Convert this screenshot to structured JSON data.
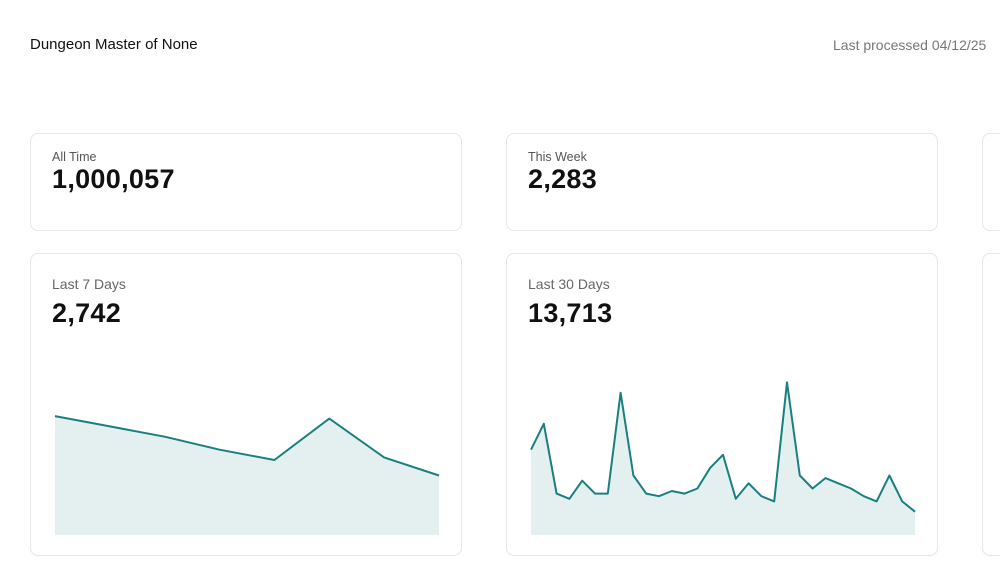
{
  "header": {
    "title": "Dungeon Master of None",
    "last_processed": "Last processed 04/12/25"
  },
  "summary_cards": [
    {
      "label": "All Time",
      "value": "1,000,057"
    },
    {
      "label": "This Week",
      "value": "2,283"
    }
  ],
  "chart_cards": [
    {
      "label": "Last 7 Days",
      "value": "2,742"
    },
    {
      "label": "Last 30 Days",
      "value": "13,713"
    }
  ],
  "colors": {
    "line": "#1a7f80",
    "fill": "#e4f0ef",
    "border": "#e6e6e6"
  },
  "chart_data": [
    {
      "type": "area",
      "title": "Last 7 Days",
      "x": [
        1,
        2,
        3,
        4,
        5,
        6,
        7,
        8
      ],
      "values": [
        460,
        420,
        380,
        330,
        290,
        450,
        300,
        230
      ],
      "ylim": [
        0,
        700
      ]
    },
    {
      "type": "area",
      "title": "Last 30 Days",
      "x": [
        1,
        2,
        3,
        4,
        5,
        6,
        7,
        8,
        9,
        10,
        11,
        12,
        13,
        14,
        15,
        16,
        17,
        18,
        19,
        20,
        21,
        22,
        23,
        24,
        25,
        26,
        27,
        28,
        29,
        30,
        31
      ],
      "values": [
        330,
        430,
        160,
        140,
        210,
        160,
        160,
        550,
        230,
        160,
        150,
        170,
        160,
        180,
        260,
        310,
        140,
        200,
        150,
        130,
        590,
        230,
        180,
        220,
        200,
        180,
        150,
        130,
        230,
        130,
        90
      ],
      "ylim": [
        0,
        700
      ]
    }
  ]
}
